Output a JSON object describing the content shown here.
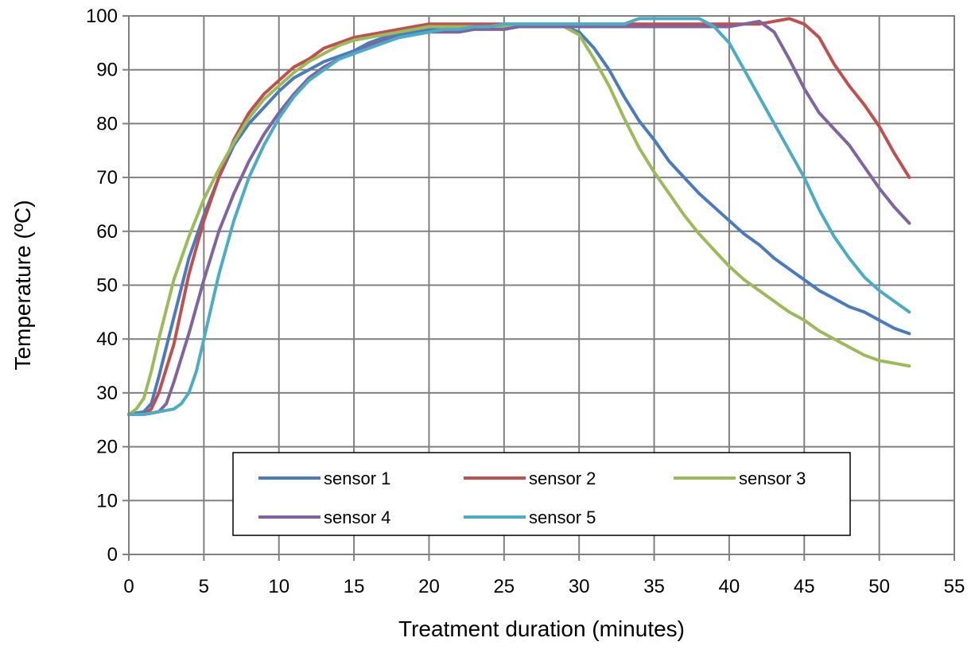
{
  "chart_data": {
    "type": "line",
    "xlabel": "Treatment duration (minutes)",
    "ylabel": "Temperature  (ºC)",
    "xlim": [
      0,
      55
    ],
    "ylim": [
      0,
      100
    ],
    "xticks": [
      0,
      5,
      10,
      15,
      20,
      25,
      30,
      35,
      40,
      45,
      50,
      55
    ],
    "yticks": [
      0,
      10,
      20,
      30,
      40,
      50,
      60,
      70,
      80,
      90,
      100
    ],
    "xtick_labels": [
      "0",
      "5",
      "10",
      "15",
      "20",
      "25",
      "30",
      "35",
      "40",
      "45",
      "50",
      "55"
    ],
    "ytick_labels": [
      "0",
      "10",
      "20",
      "30",
      "40",
      "50",
      "60",
      "70",
      "80",
      "90",
      "100"
    ],
    "grid": true,
    "legend_position": "bottom-center inside plot",
    "series": [
      {
        "name": "sensor 1",
        "color": "#4a7bbf",
        "points": [
          [
            0,
            26
          ],
          [
            1,
            26.5
          ],
          [
            1.5,
            28
          ],
          [
            2,
            33
          ],
          [
            3,
            44
          ],
          [
            4,
            55
          ],
          [
            5,
            63
          ],
          [
            6,
            70
          ],
          [
            7,
            76
          ],
          [
            8,
            80
          ],
          [
            9,
            83
          ],
          [
            10,
            86
          ],
          [
            11,
            88.5
          ],
          [
            12,
            90
          ],
          [
            13,
            91.5
          ],
          [
            14,
            92.5
          ],
          [
            15,
            93.5
          ],
          [
            16,
            95
          ],
          [
            17,
            96
          ],
          [
            18,
            96.5
          ],
          [
            19,
            97
          ],
          [
            20,
            97.5
          ],
          [
            21,
            98
          ],
          [
            22,
            98
          ],
          [
            23,
            98
          ],
          [
            24,
            98
          ],
          [
            25,
            98
          ],
          [
            26,
            98
          ],
          [
            27,
            98
          ],
          [
            28,
            98
          ],
          [
            29,
            98
          ],
          [
            30,
            97
          ],
          [
            31,
            94
          ],
          [
            32,
            90
          ],
          [
            33,
            85
          ],
          [
            34,
            80.5
          ],
          [
            35,
            77
          ],
          [
            36,
            73
          ],
          [
            37,
            70
          ],
          [
            38,
            67
          ],
          [
            39,
            64.5
          ],
          [
            40,
            62
          ],
          [
            41,
            59.5
          ],
          [
            42,
            57.5
          ],
          [
            43,
            55
          ],
          [
            44,
            53
          ],
          [
            45,
            51
          ],
          [
            46,
            49
          ],
          [
            47,
            47.5
          ],
          [
            48,
            46
          ],
          [
            49,
            45
          ],
          [
            50,
            43.5
          ],
          [
            51,
            42
          ],
          [
            52,
            41
          ]
        ]
      },
      {
        "name": "sensor 2",
        "color": "#c0504d",
        "points": [
          [
            0,
            26
          ],
          [
            1,
            26
          ],
          [
            1.5,
            27
          ],
          [
            2,
            30
          ],
          [
            3,
            39
          ],
          [
            4,
            52
          ],
          [
            5,
            62
          ],
          [
            6,
            70
          ],
          [
            7,
            77
          ],
          [
            8,
            82
          ],
          [
            9,
            85.5
          ],
          [
            10,
            88
          ],
          [
            11,
            90.5
          ],
          [
            12,
            92
          ],
          [
            13,
            94
          ],
          [
            14,
            95
          ],
          [
            15,
            96
          ],
          [
            16,
            96.5
          ],
          [
            17,
            97
          ],
          [
            18,
            97.5
          ],
          [
            19,
            98
          ],
          [
            20,
            98.5
          ],
          [
            21,
            98.5
          ],
          [
            22,
            98.5
          ],
          [
            23,
            98.5
          ],
          [
            24,
            98.5
          ],
          [
            25,
            98.5
          ],
          [
            26,
            98.5
          ],
          [
            27,
            98.5
          ],
          [
            28,
            98.5
          ],
          [
            29,
            98.5
          ],
          [
            30,
            98.5
          ],
          [
            31,
            98.5
          ],
          [
            32,
            98.5
          ],
          [
            33,
            98.5
          ],
          [
            34,
            98.5
          ],
          [
            35,
            98.5
          ],
          [
            36,
            98.5
          ],
          [
            37,
            98.5
          ],
          [
            38,
            98.5
          ],
          [
            39,
            98.5
          ],
          [
            40,
            98.5
          ],
          [
            41,
            98.5
          ],
          [
            42,
            98.5
          ],
          [
            43,
            99
          ],
          [
            44,
            99.5
          ],
          [
            45,
            98.5
          ],
          [
            46,
            96
          ],
          [
            47,
            91
          ],
          [
            48,
            87
          ],
          [
            49,
            83.5
          ],
          [
            50,
            79.5
          ],
          [
            51,
            74.5
          ],
          [
            52,
            70
          ]
        ]
      },
      {
        "name": "sensor 3",
        "color": "#9bbb59",
        "points": [
          [
            0,
            26
          ],
          [
            0.5,
            27
          ],
          [
            1,
            29
          ],
          [
            1.5,
            34
          ],
          [
            2,
            40
          ],
          [
            3,
            51
          ],
          [
            4,
            59
          ],
          [
            5,
            66
          ],
          [
            6,
            71.5
          ],
          [
            7,
            76.5
          ],
          [
            8,
            81
          ],
          [
            9,
            84.5
          ],
          [
            10,
            87
          ],
          [
            11,
            89.5
          ],
          [
            12,
            91.5
          ],
          [
            13,
            93
          ],
          [
            14,
            94.5
          ],
          [
            15,
            95.5
          ],
          [
            16,
            96
          ],
          [
            17,
            96.5
          ],
          [
            18,
            97
          ],
          [
            19,
            97.5
          ],
          [
            20,
            98
          ],
          [
            21,
            98
          ],
          [
            22,
            98
          ],
          [
            23,
            98
          ],
          [
            24,
            98
          ],
          [
            25,
            98
          ],
          [
            26,
            98
          ],
          [
            27,
            98
          ],
          [
            28,
            98
          ],
          [
            29,
            98
          ],
          [
            30,
            96.5
          ],
          [
            31,
            92
          ],
          [
            32,
            87
          ],
          [
            33,
            81
          ],
          [
            34,
            75.5
          ],
          [
            35,
            71
          ],
          [
            36,
            67
          ],
          [
            37,
            63
          ],
          [
            38,
            59.5
          ],
          [
            39,
            56.5
          ],
          [
            40,
            53.5
          ],
          [
            41,
            51
          ],
          [
            42,
            49
          ],
          [
            43,
            47
          ],
          [
            44,
            45
          ],
          [
            45,
            43.5
          ],
          [
            46,
            41.5
          ],
          [
            47,
            40
          ],
          [
            48,
            38.5
          ],
          [
            49,
            37
          ],
          [
            50,
            36
          ],
          [
            51,
            35.5
          ],
          [
            52,
            35
          ]
        ]
      },
      {
        "name": "sensor 4",
        "color": "#8064a2",
        "points": [
          [
            0,
            26
          ],
          [
            1,
            26
          ],
          [
            2,
            26.5
          ],
          [
            2.5,
            28
          ],
          [
            3,
            32
          ],
          [
            4,
            41
          ],
          [
            5,
            51
          ],
          [
            6,
            60
          ],
          [
            7,
            67
          ],
          [
            8,
            73
          ],
          [
            9,
            78
          ],
          [
            10,
            82
          ],
          [
            11,
            85.5
          ],
          [
            12,
            88.5
          ],
          [
            13,
            90.5
          ],
          [
            14,
            92
          ],
          [
            15,
            93
          ],
          [
            16,
            94.5
          ],
          [
            17,
            95.5
          ],
          [
            18,
            96
          ],
          [
            19,
            96.5
          ],
          [
            20,
            97
          ],
          [
            21,
            97
          ],
          [
            22,
            97
          ],
          [
            23,
            97.5
          ],
          [
            24,
            97.5
          ],
          [
            25,
            97.5
          ],
          [
            26,
            98
          ],
          [
            27,
            98
          ],
          [
            28,
            98
          ],
          [
            29,
            98
          ],
          [
            30,
            98
          ],
          [
            31,
            98
          ],
          [
            32,
            98
          ],
          [
            33,
            98
          ],
          [
            34,
            98
          ],
          [
            35,
            98
          ],
          [
            36,
            98
          ],
          [
            37,
            98
          ],
          [
            38,
            98
          ],
          [
            39,
            98
          ],
          [
            40,
            98
          ],
          [
            41,
            98.5
          ],
          [
            42,
            99
          ],
          [
            43,
            97
          ],
          [
            44,
            92
          ],
          [
            45,
            86.5
          ],
          [
            46,
            82
          ],
          [
            47,
            79
          ],
          [
            48,
            76
          ],
          [
            49,
            72
          ],
          [
            50,
            68
          ],
          [
            51,
            64.5
          ],
          [
            52,
            61.5
          ]
        ]
      },
      {
        "name": "sensor 5",
        "color": "#4bacc6",
        "points": [
          [
            0,
            26
          ],
          [
            1,
            26
          ],
          [
            2,
            26.5
          ],
          [
            3,
            27
          ],
          [
            3.5,
            28
          ],
          [
            4,
            30
          ],
          [
            4.5,
            34
          ],
          [
            5,
            40
          ],
          [
            6,
            52
          ],
          [
            7,
            62
          ],
          [
            8,
            70
          ],
          [
            9,
            76
          ],
          [
            10,
            81
          ],
          [
            11,
            85
          ],
          [
            12,
            88
          ],
          [
            13,
            90
          ],
          [
            14,
            92
          ],
          [
            15,
            93
          ],
          [
            16,
            94
          ],
          [
            17,
            95
          ],
          [
            18,
            96
          ],
          [
            19,
            96.5
          ],
          [
            20,
            97
          ],
          [
            21,
            97.5
          ],
          [
            22,
            97.5
          ],
          [
            23,
            98
          ],
          [
            24,
            98
          ],
          [
            25,
            98.5
          ],
          [
            26,
            98.5
          ],
          [
            27,
            98.5
          ],
          [
            28,
            98.5
          ],
          [
            29,
            98.5
          ],
          [
            30,
            98.5
          ],
          [
            31,
            98.5
          ],
          [
            32,
            98.5
          ],
          [
            33,
            98.5
          ],
          [
            34,
            99.5
          ],
          [
            35,
            99.5
          ],
          [
            36,
            99.5
          ],
          [
            37,
            99.5
          ],
          [
            38,
            99.5
          ],
          [
            39,
            98
          ],
          [
            40,
            95
          ],
          [
            41,
            90
          ],
          [
            42,
            85
          ],
          [
            43,
            80
          ],
          [
            44,
            75
          ],
          [
            45,
            70
          ],
          [
            46,
            64
          ],
          [
            47,
            59
          ],
          [
            48,
            55
          ],
          [
            49,
            51.5
          ],
          [
            50,
            49
          ],
          [
            51,
            47
          ],
          [
            52,
            45
          ]
        ]
      }
    ]
  }
}
